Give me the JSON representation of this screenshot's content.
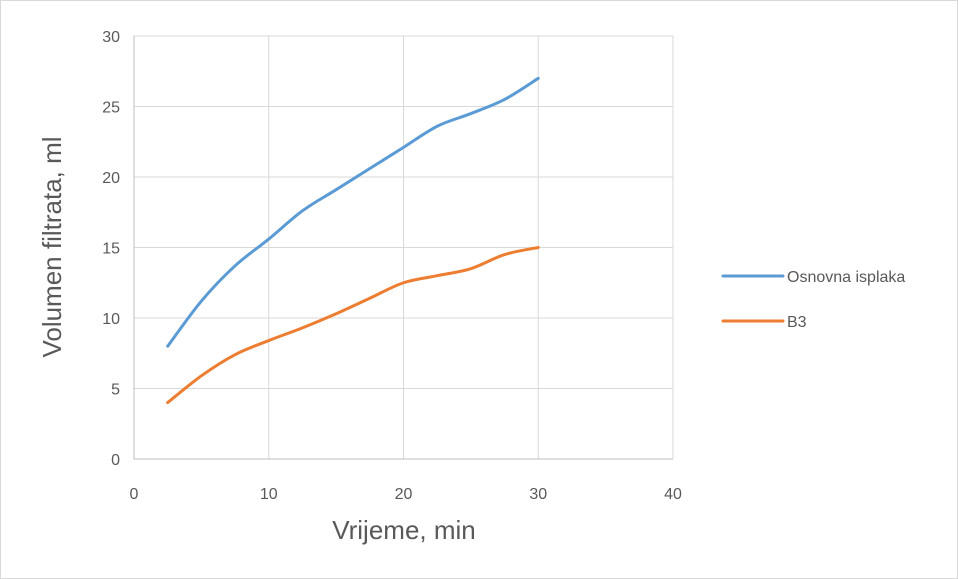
{
  "chart_data": {
    "type": "line",
    "xlabel": "Vrijeme, min",
    "ylabel": "Volumen filtrata, ml",
    "xlim": [
      0,
      40
    ],
    "ylim": [
      0,
      30
    ],
    "xticks": [
      0,
      10,
      20,
      30,
      40
    ],
    "yticks": [
      0,
      5,
      10,
      15,
      20,
      25,
      30
    ],
    "grid": true,
    "legend_position": "right",
    "series": [
      {
        "name": "Osnovna isplaka",
        "color": "#5b9bd5",
        "points": [
          [
            2.5,
            8
          ],
          [
            5,
            11.2
          ],
          [
            7.5,
            13.7
          ],
          [
            10,
            15.6
          ],
          [
            12.5,
            17.6
          ],
          [
            15,
            19.1
          ],
          [
            17.5,
            20.6
          ],
          [
            20,
            22.1
          ],
          [
            22.5,
            23.6
          ],
          [
            25,
            24.5
          ],
          [
            27.5,
            25.5
          ],
          [
            30,
            27
          ]
        ]
      },
      {
        "name": "B3",
        "color": "#ed7d31",
        "points": [
          [
            2.5,
            4
          ],
          [
            5,
            5.9
          ],
          [
            7.5,
            7.4
          ],
          [
            10,
            8.4
          ],
          [
            12.5,
            9.3
          ],
          [
            15,
            10.3
          ],
          [
            17.5,
            11.4
          ],
          [
            20,
            12.5
          ],
          [
            22.5,
            13
          ],
          [
            25,
            13.5
          ],
          [
            27.5,
            14.5
          ],
          [
            30,
            15
          ]
        ]
      }
    ]
  }
}
